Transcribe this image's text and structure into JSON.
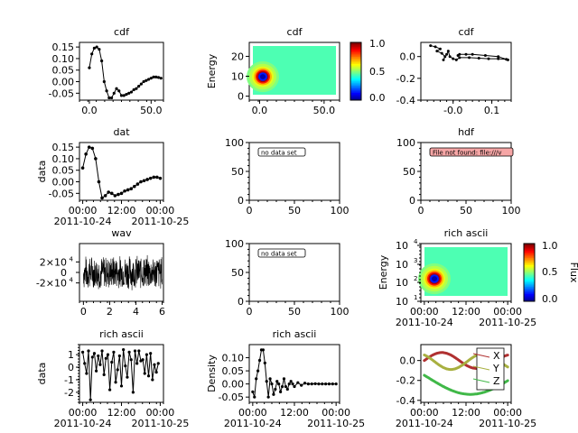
{
  "figure": {
    "panels": [
      {
        "id": "p1",
        "title": "cdf",
        "xticks": [
          "0.0",
          "50.0"
        ],
        "yticks": [
          "0.15",
          "0.10",
          "0.05",
          "0.00",
          "-0.05"
        ]
      },
      {
        "id": "p2",
        "title": "cdf",
        "ylabel": "Energy",
        "xticks": [
          "0.0",
          "50.0"
        ],
        "yticks": [
          "20",
          "10",
          "0"
        ],
        "colorbar_ticks": [
          "1.0",
          "0.5",
          "0.0"
        ]
      },
      {
        "id": "p3",
        "title": "cdf",
        "xticks": [
          "-0.0",
          "0.1"
        ],
        "yticks": [
          "0.0",
          "-0.2",
          "-0.4"
        ]
      },
      {
        "id": "p4",
        "title": "dat",
        "ylabel": "data",
        "xticks": [
          "00:00",
          "12:00",
          "00:00"
        ],
        "xdates": [
          "2011-10-24",
          "2011-10-25"
        ],
        "yticks": [
          "0.15",
          "0.10",
          "0.05",
          "0.00",
          "-0.05"
        ]
      },
      {
        "id": "p5",
        "title": "",
        "badge": "no data set",
        "xticks": [
          "0",
          "50",
          "100"
        ],
        "yticks": [
          "100",
          "50",
          "0"
        ]
      },
      {
        "id": "p6",
        "title": "hdf",
        "badge": "File not found: file:///v",
        "xticks": [
          "0",
          "50",
          "100"
        ],
        "yticks": [
          "100",
          "50",
          "0"
        ]
      },
      {
        "id": "p7",
        "title": "wav",
        "xticks": [
          "0",
          "2",
          "4",
          "6"
        ]
      },
      {
        "id": "p8",
        "title": "",
        "badge": "no data set",
        "xticks": [
          "0",
          "50",
          "100"
        ],
        "yticks": [
          "100",
          "50",
          "0"
        ]
      },
      {
        "id": "p9",
        "title": "rich ascii",
        "ylabel": "Energy",
        "xticks": [
          "00:00",
          "12:00",
          "00:00"
        ],
        "xdates": [
          "2011-10-24",
          "2011-10-25"
        ],
        "colorbar_label": "Flux",
        "colorbar_ticks": [
          "1.0",
          "0.5",
          "0.0"
        ]
      },
      {
        "id": "p10",
        "title": "rich ascii",
        "ylabel": "data",
        "xticks": [
          "00:00",
          "12:00",
          "00:00"
        ],
        "xdates": [
          "2011-10-24",
          "2011-10-25"
        ],
        "yticks": [
          "1",
          "0",
          "-1",
          "-2"
        ]
      },
      {
        "id": "p11",
        "title": "rich ascii",
        "ylabel": "Density",
        "xticks": [
          "00:00",
          "12:00",
          "00:00"
        ],
        "xdates": [
          "2011-10-24",
          "2011-10-25"
        ],
        "yticks": [
          "0.10",
          "0.05",
          "0.00",
          "-0.05"
        ]
      },
      {
        "id": "p12",
        "title": "",
        "xticks": [
          "00:00",
          "12:00",
          "00:00"
        ],
        "xdates": [
          "2011-10-24",
          "2011-10-25"
        ],
        "yticks": [
          "0.0",
          "-0.2",
          "-0.4"
        ],
        "legend": [
          "X",
          "Y",
          "Z"
        ]
      }
    ],
    "wav_yticks": [
      "2×10",
      "0",
      "-2×10"
    ],
    "wav_exp": "4",
    "log_base": "10",
    "log_exps": [
      "4",
      "3",
      "2",
      "1"
    ]
  },
  "chart_data": [
    {
      "type": "line",
      "panel": "p1",
      "x": [
        0,
        2,
        4,
        6,
        8,
        10,
        12,
        14,
        16,
        18,
        20,
        22,
        24,
        26,
        28,
        30,
        32,
        34,
        36,
        38,
        40,
        42,
        44,
        46,
        48,
        50,
        52,
        54,
        56,
        58
      ],
      "values": [
        0.06,
        0.12,
        0.145,
        0.15,
        0.14,
        0.09,
        0.0,
        -0.04,
        -0.07,
        -0.07,
        -0.05,
        -0.03,
        -0.04,
        -0.06,
        -0.06,
        -0.055,
        -0.05,
        -0.045,
        -0.035,
        -0.03,
        -0.02,
        -0.01,
        0.0,
        0.005,
        0.01,
        0.015,
        0.02,
        0.02,
        0.018,
        0.015
      ],
      "ylim": [
        -0.08,
        0.17
      ],
      "xlim": [
        -8,
        60
      ]
    },
    {
      "type": "heatmap",
      "panel": "p2",
      "xlim": [
        -8,
        62
      ],
      "ylim": [
        -2,
        27
      ],
      "peak": [
        7,
        10
      ],
      "zlim": [
        -0.4,
        1.1
      ]
    },
    {
      "type": "line",
      "panel": "p3",
      "series": [
        {
          "name": "",
          "x": [
            -0.09,
            -0.075,
            -0.06,
            -0.07,
            -0.055,
            -0.045,
            -0.05,
            -0.04,
            -0.035,
            -0.03,
            -0.02,
            -0.01,
            0.0,
            0.03,
            0.06,
            0.09,
            0.12,
            0.145,
            0.15,
            0.12,
            0.08,
            0.04,
            0.02,
            0.0,
            -0.005
          ],
          "y": [
            0.1,
            0.09,
            0.07,
            0.05,
            0.03,
            0.0,
            -0.03,
            0.02,
            0.05,
            0.0,
            -0.02,
            -0.03,
            -0.01,
            -0.01,
            -0.015,
            -0.02,
            -0.02,
            -0.025,
            -0.03,
            0.0,
            0.01,
            0.02,
            0.02,
            0.02,
            0.01
          ]
        }
      ],
      "xlim": [
        -0.12,
        0.16
      ],
      "ylim": [
        -0.4,
        0.13
      ]
    },
    {
      "type": "line",
      "panel": "p4",
      "x": [
        0,
        1,
        2,
        3,
        4,
        5,
        6,
        7,
        8,
        9,
        10,
        11,
        12,
        13,
        14,
        15,
        16,
        17,
        18,
        19,
        20,
        21,
        22,
        23,
        24
      ],
      "values": [
        0.06,
        0.12,
        0.15,
        0.145,
        0.1,
        0.0,
        -0.07,
        -0.06,
        -0.045,
        -0.05,
        -0.06,
        -0.055,
        -0.05,
        -0.04,
        -0.035,
        -0.03,
        -0.02,
        -0.01,
        0.0,
        0.005,
        0.01,
        0.015,
        0.02,
        0.02,
        0.015
      ],
      "ylim": [
        -0.08,
        0.17
      ],
      "xlim": [
        -1,
        25
      ]
    },
    {
      "type": "line",
      "panel": "p7",
      "xlim": [
        -0.3,
        6.1
      ],
      "ylim": [
        -55000,
        55000
      ],
      "amp": 30000
    },
    {
      "type": "heatmap",
      "panel": "p9",
      "xlim": [
        -1,
        25
      ],
      "ylim_log": [
        1,
        10000
      ],
      "peak": [
        2,
        150
      ]
    },
    {
      "type": "line",
      "panel": "p10",
      "x": [
        0,
        0.6,
        1.2,
        1.8,
        2.4,
        3,
        3.6,
        4.2,
        4.8,
        5.4,
        6,
        6.6,
        7.2,
        7.8,
        8.4,
        9,
        9.6,
        10.2,
        10.8,
        11.4,
        12,
        12.6,
        13.2,
        13.8,
        14.4,
        15,
        15.6,
        16.2,
        16.8,
        17.4,
        18,
        18.6,
        19.2,
        19.8,
        20.4,
        21,
        21.6,
        22.2,
        22.8,
        23.4
      ],
      "values": [
        1.2,
        0.3,
        -0.5,
        1.3,
        -2.6,
        0.8,
        1.1,
        -0.3,
        0.9,
        0.2,
        1.3,
        -0.6,
        0.7,
        1.0,
        -1.8,
        0.4,
        1.2,
        -1.2,
        -0.2,
        0.9,
        -1.5,
        1.4,
        0.1,
        -0.8,
        1.2,
        0.6,
        -2.0,
        1.3,
        0.3,
        1.3,
        0.5,
        0.6,
        -0.5,
        1.0,
        -0.7,
        1.1,
        -1.0,
        0.2,
        -0.4,
        0.3
      ],
      "ylim": [
        -2.8,
        1.8
      ],
      "xlim": [
        -1,
        25
      ]
    },
    {
      "type": "line",
      "panel": "p11",
      "x": [
        0,
        0.5,
        1,
        1.5,
        2,
        2.5,
        3,
        3.5,
        4,
        4.5,
        5,
        5.5,
        6,
        6.5,
        7,
        7.5,
        8,
        8.5,
        9,
        9.5,
        10,
        10.5,
        11,
        11.5,
        12,
        13,
        14,
        15,
        16,
        17,
        18,
        19,
        20,
        21,
        22,
        23,
        24
      ],
      "values": [
        -0.03,
        -0.05,
        0.02,
        0.05,
        0.09,
        0.13,
        0.13,
        0.08,
        0.01,
        -0.05,
        0.02,
        0.0,
        -0.04,
        -0.02,
        0.01,
        0.0,
        -0.03,
        -0.01,
        0.02,
        -0.01,
        -0.02,
        0.0,
        0.01,
        0.0,
        -0.01,
        0.005,
        -0.005,
        0.003,
        0.0,
        0.0,
        0.001,
        0.0,
        0.0,
        0.0,
        0.0,
        0.0,
        0.0
      ],
      "ylim": [
        -0.07,
        0.15
      ],
      "xlim": [
        -1,
        25
      ]
    },
    {
      "type": "line",
      "panel": "p12",
      "xlim": [
        -1,
        25
      ],
      "ylim": [
        -0.42,
        0.16
      ],
      "series": [
        {
          "name": "X",
          "color": "#b03030"
        },
        {
          "name": "Y",
          "color": "#a8b040"
        },
        {
          "name": "Z",
          "color": "#40b848"
        }
      ]
    }
  ]
}
